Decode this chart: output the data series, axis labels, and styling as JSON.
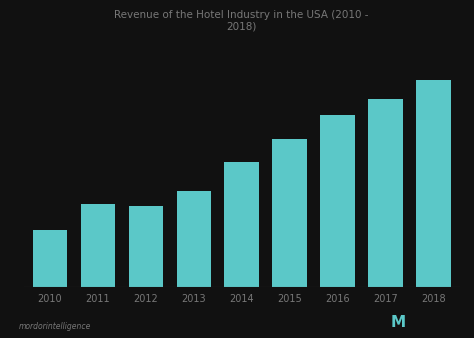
{
  "title": "Revenue of the Hotel Industry in the USA (2010 -\n2018)",
  "categories": [
    "2010",
    "2011",
    "2012",
    "2013",
    "2014",
    "2015",
    "2016",
    "2017",
    "2018"
  ],
  "values": [
    5.5,
    6.2,
    6.15,
    6.55,
    7.3,
    7.9,
    8.55,
    8.95,
    9.45
  ],
  "bar_color": "#5BC8C8",
  "background_color": "#111111",
  "title_color": "#777777",
  "tick_color": "#777777",
  "separator_color": "#444444",
  "footer_text": "mordorintelligence",
  "ylim_min": 4.0,
  "ylim_max": 10.5,
  "title_fontsize": 7.5,
  "tick_fontsize": 7,
  "bar_width": 0.72
}
